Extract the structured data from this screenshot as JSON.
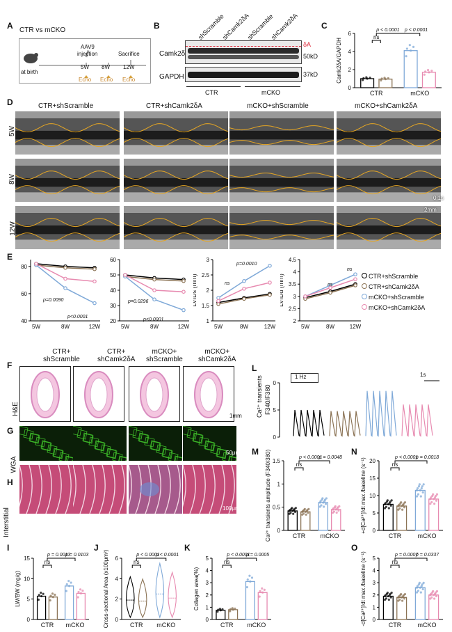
{
  "panel_letters": {
    "A": "A",
    "B": "B",
    "C": "C",
    "D": "D",
    "E": "E",
    "F": "F",
    "G": "G",
    "H": "H",
    "I": "I",
    "J": "J",
    "K": "K",
    "L": "L",
    "M": "M",
    "N": "N",
    "O": "O"
  },
  "panelA": {
    "title": "CTR vs mCKO",
    "at_birth": "at birth",
    "aav9": "AAV9",
    "injection": "injection",
    "sacrifice": "Sacrifice",
    "timepoints": [
      "5W",
      "8W",
      "12W"
    ],
    "echo": "Echo"
  },
  "panelB": {
    "lanes": [
      "shScramble",
      "shCamk2δA",
      "shScramble",
      "shCamk2δA"
    ],
    "row1": "Camk2δ",
    "row2": "GAPDH",
    "deltaA": "δA",
    "kd50": "50kD",
    "kd37": "37kD",
    "groups": [
      "CTR",
      "mCKO"
    ]
  },
  "panelD": {
    "columns": [
      "CTR+shScramble",
      "CTR+shCamk2δA",
      "mCKO+shScramble",
      "mCKO+shCamk2δA"
    ],
    "rows": [
      "5W",
      "8W",
      "12W"
    ],
    "scale_time": "0.1s",
    "scale_dist": "2mm"
  },
  "panelE": {
    "legend": [
      "CTR+shScramble",
      "CTR+shCamk2δA",
      "mCKO+shScramble",
      "mCKO+shCamk2δA"
    ],
    "stats": {
      "ef_p1": "p=0.0090",
      "ef_p2": "p<0.0001",
      "fs_p1": "p=0.0296",
      "fs_p2": "p<0.0001",
      "lvids_ns": "ns",
      "lvids_p": "p=0.0010",
      "lvidd_ns1": "ns",
      "lvidd_ns2": "ns"
    }
  },
  "panelF": {
    "columns": [
      "CTR+\nshScramble",
      "CTR+\nshCamk2δA",
      "mCKO+\nshScramble",
      "mCKO+\nshCamk2δA"
    ],
    "row_he": "H&E",
    "scale": "1mm"
  },
  "panelG": {
    "row": "WGA",
    "scale": "50μm"
  },
  "panelH": {
    "row": "Interstitial",
    "scale": "100μm"
  },
  "panelL": {
    "ylabel1": "Ca²⁺ transients",
    "ylabel2": "F340/F380",
    "freq": "1 Hz",
    "scale": "1s",
    "yticks": [
      "1.0",
      "1.5",
      "2.0"
    ]
  },
  "bar_panels": {
    "group_labels": [
      "CTR",
      "mCKO"
    ],
    "ns": "ns",
    "C": {
      "p1": "p < 0.0001",
      "p2": "p < 0.0001"
    },
    "I": {
      "p1": "p = 0.0013",
      "p2": "p = 0.0103"
    },
    "J": {
      "p1": "p < 0.0001",
      "p2": "p < 0.0001"
    },
    "K": {
      "p1": "p < 0.0001",
      "p2": "p = 0.0005"
    },
    "M": {
      "p1": "p < 0.0001",
      "p2": "p = 0.0048"
    },
    "N": {
      "p1": "p < 0.0001",
      "p2": "p = 0.0018"
    },
    "O": {
      "p1": "p = 0.0007",
      "p2": "p = 0.0337"
    }
  },
  "colors": {
    "ctr_scr": "#000000",
    "ctr_sh": "#8b7355",
    "mcko_scr": "#7fa9d8",
    "mcko_sh": "#e78ab0"
  },
  "chart_data": [
    {
      "type": "line",
      "id": "E1",
      "xlabel": "",
      "ylabel": "EF (%)",
      "categories": [
        "5W",
        "8W",
        "12W"
      ],
      "ylim": [
        40,
        85
      ],
      "yticks": [
        40,
        60,
        80
      ],
      "series": [
        {
          "name": "CTR+shScramble",
          "values": [
            82,
            80,
            79
          ]
        },
        {
          "name": "CTR+shCamk2δA",
          "values": [
            81,
            79,
            78
          ]
        },
        {
          "name": "mCKO+shScramble",
          "values": [
            81,
            64,
            53
          ]
        },
        {
          "name": "mCKO+shCamk2δA",
          "values": [
            82,
            71,
            69
          ]
        }
      ]
    },
    {
      "type": "line",
      "id": "E2",
      "xlabel": "",
      "ylabel": "FS (%)",
      "categories": [
        "5W",
        "8W",
        "12W"
      ],
      "ylim": [
        20,
        60
      ],
      "yticks": [
        20,
        30,
        40,
        50,
        60
      ],
      "series": [
        {
          "name": "CTR+shScramble",
          "values": [
            50,
            48,
            47
          ]
        },
        {
          "name": "CTR+shCamk2δA",
          "values": [
            49,
            47,
            46
          ]
        },
        {
          "name": "mCKO+shScramble",
          "values": [
            49,
            34,
            27
          ]
        },
        {
          "name": "mCKO+shCamk2δA",
          "values": [
            50,
            40,
            39
          ]
        }
      ]
    },
    {
      "type": "line",
      "id": "E3",
      "xlabel": "",
      "ylabel": "LVIDs (mm)",
      "categories": [
        "5W",
        "8W",
        "12W"
      ],
      "ylim": [
        1.0,
        3.0
      ],
      "yticks": [
        1.0,
        1.5,
        2.0,
        2.5,
        3.0
      ],
      "series": [
        {
          "name": "CTR+shScramble",
          "values": [
            1.6,
            1.75,
            1.88
          ]
        },
        {
          "name": "CTR+shCamk2δA",
          "values": [
            1.55,
            1.72,
            1.85
          ]
        },
        {
          "name": "mCKO+shScramble",
          "values": [
            1.75,
            2.3,
            2.8
          ]
        },
        {
          "name": "mCKO+shCamk2δA",
          "values": [
            1.65,
            2.05,
            2.25
          ]
        }
      ]
    },
    {
      "type": "line",
      "id": "E4",
      "xlabel": "",
      "ylabel": "LVIDd (mm)",
      "categories": [
        "5W",
        "8W",
        "12W"
      ],
      "ylim": [
        2.0,
        4.5
      ],
      "yticks": [
        2.0,
        2.5,
        3.0,
        3.5,
        4.0,
        4.5
      ],
      "series": [
        {
          "name": "CTR+shScramble",
          "values": [
            2.95,
            3.2,
            3.5
          ]
        },
        {
          "name": "CTR+shCamk2δA",
          "values": [
            2.9,
            3.15,
            3.45
          ]
        },
        {
          "name": "mCKO+shScramble",
          "values": [
            3.0,
            3.45,
            3.9
          ]
        },
        {
          "name": "mCKO+shCamk2δA",
          "values": [
            3.0,
            3.35,
            3.7
          ]
        }
      ]
    },
    {
      "type": "bar",
      "id": "C",
      "ylabel": "Camk2δA/GAPDH",
      "categories": [
        "CTR",
        "mCKO"
      ],
      "ylim": [
        0,
        6
      ],
      "yticks": [
        0,
        2,
        4,
        6
      ],
      "series": [
        {
          "name": "shScramble",
          "values": [
            1.0,
            4.1
          ]
        },
        {
          "name": "shCamk2δA",
          "values": [
            0.95,
            1.7
          ]
        }
      ]
    },
    {
      "type": "bar",
      "id": "I",
      "ylabel": "LW/BW (mg/g)",
      "categories": [
        "CTR",
        "mCKO"
      ],
      "ylim": [
        0,
        15
      ],
      "yticks": [
        0,
        5,
        10,
        15
      ],
      "series": [
        {
          "name": "shScramble",
          "values": [
            5.7,
            8.2
          ]
        },
        {
          "name": "shCamk2δA",
          "values": [
            5.5,
            6.4
          ]
        }
      ]
    },
    {
      "type": "bar",
      "id": "J",
      "ylabel": "Cross-sectional Area (x100μm²)",
      "categories": [
        "CTR",
        "mCKO"
      ],
      "ylim": [
        0,
        6
      ],
      "yticks": [
        0,
        2,
        4,
        6
      ],
      "series": [
        {
          "name": "shScramble",
          "values": [
            1.9,
            2.5
          ]
        },
        {
          "name": "shCamk2δA",
          "values": [
            1.8,
            2.1
          ]
        }
      ]
    },
    {
      "type": "bar",
      "id": "K",
      "ylabel": "Collagen area(%)",
      "categories": [
        "CTR",
        "mCKO"
      ],
      "ylim": [
        0,
        5
      ],
      "yticks": [
        0,
        1,
        2,
        3,
        4,
        5
      ],
      "series": [
        {
          "name": "shScramble",
          "values": [
            0.75,
            3.1
          ]
        },
        {
          "name": "shCamk2δA",
          "values": [
            0.8,
            2.2
          ]
        }
      ]
    },
    {
      "type": "bar",
      "id": "M",
      "ylabel": "Ca²⁺ transients amplitude (F340/380)",
      "categories": [
        "CTR",
        "mCKO"
      ],
      "ylim": [
        0,
        1.5
      ],
      "yticks": [
        0.0,
        0.5,
        1.0,
        1.5
      ],
      "series": [
        {
          "name": "shScramble",
          "values": [
            0.42,
            0.6
          ]
        },
        {
          "name": "shCamk2δA",
          "values": [
            0.4,
            0.45
          ]
        }
      ]
    },
    {
      "type": "bar",
      "id": "N",
      "ylabel": "+d[Ca²⁺]/dt max /baseline (s⁻¹)",
      "categories": [
        "CTR",
        "mCKO"
      ],
      "ylim": [
        0,
        20
      ],
      "yticks": [
        0,
        5,
        10,
        15,
        20
      ],
      "series": [
        {
          "name": "shScramble",
          "values": [
            7.5,
            11.5
          ]
        },
        {
          "name": "shCamk2δA",
          "values": [
            7.0,
            9.0
          ]
        }
      ]
    },
    {
      "type": "bar",
      "id": "O",
      "ylabel": "-d[Ca²⁺]/dt max /baseline (s⁻¹)",
      "categories": [
        "CTR",
        "mCKO"
      ],
      "ylim": [
        0,
        5
      ],
      "yticks": [
        0,
        1,
        2,
        3,
        4,
        5
      ],
      "series": [
        {
          "name": "shScramble",
          "values": [
            1.9,
            2.6
          ]
        },
        {
          "name": "shCamk2δA",
          "values": [
            1.8,
            2.0
          ]
        }
      ]
    }
  ]
}
